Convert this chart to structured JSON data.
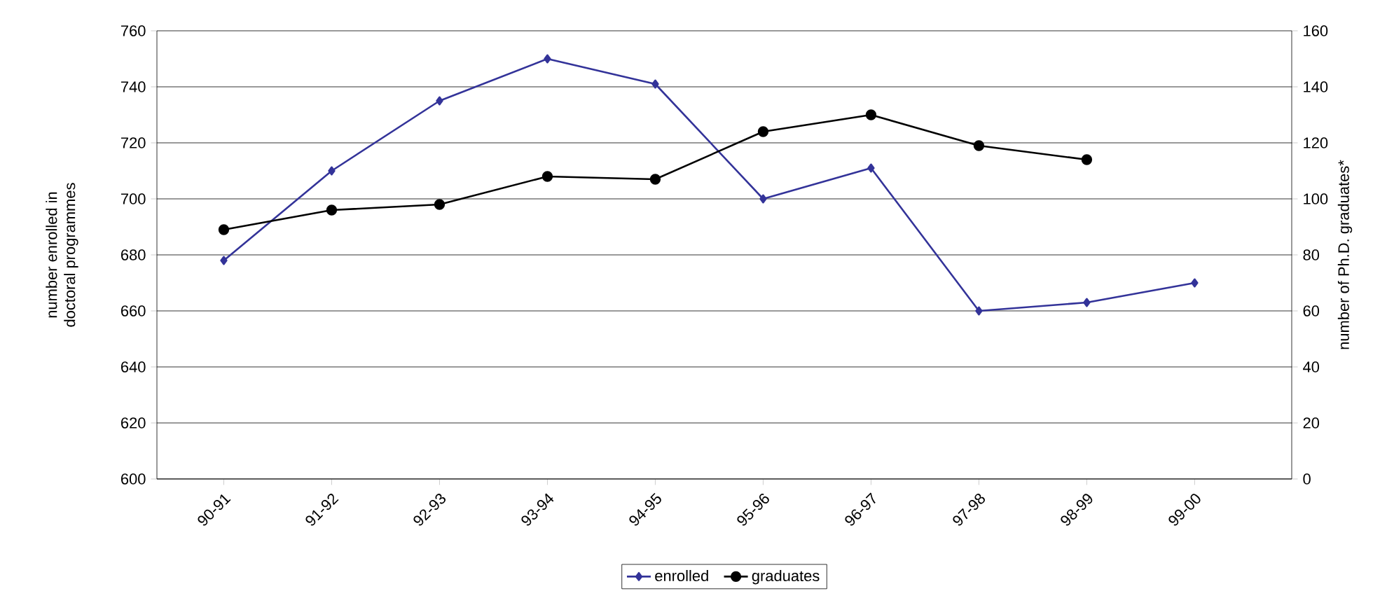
{
  "chart_data": {
    "type": "line",
    "categories": [
      "90-91",
      "91-92",
      "92-93",
      "93-94",
      "94-95",
      "95-96",
      "96-97",
      "97-98",
      "98-99",
      "99-00"
    ],
    "series": [
      {
        "name": "enrolled",
        "color": "#333399",
        "marker": "diamond",
        "values": [
          678,
          710,
          735,
          750,
          741,
          700,
          711,
          660,
          663,
          670
        ]
      },
      {
        "name": "graduates",
        "color": "#000000",
        "marker": "circle",
        "axis": "y2",
        "values": [
          89,
          96,
          98,
          108,
          107,
          124,
          130,
          119,
          114,
          null
        ]
      }
    ],
    "ylabel": "number enrolled in doctoral programmes",
    "y2label": "number of Ph.D. graduates*",
    "ylim": [
      600,
      760
    ],
    "yticks": [
      600,
      620,
      640,
      660,
      680,
      700,
      720,
      740,
      760
    ],
    "y2lim": [
      0,
      160
    ],
    "y2ticks": [
      0,
      20,
      40,
      60,
      80,
      100,
      120,
      140,
      160
    ],
    "grid": "y",
    "legend": "bottom",
    "line_style": "solid"
  }
}
